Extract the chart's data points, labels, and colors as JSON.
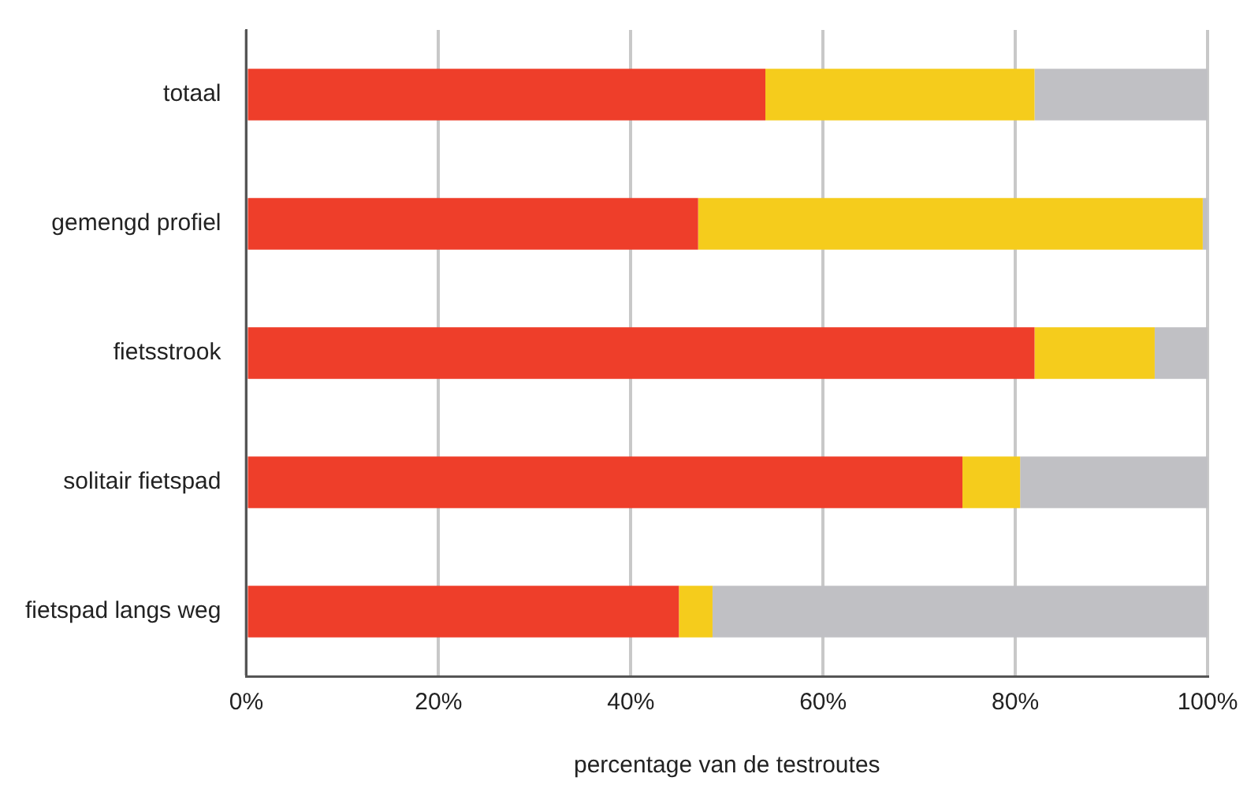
{
  "chart_data": {
    "type": "bar",
    "orientation": "horizontal",
    "stacked": true,
    "categories": [
      "totaal",
      "gemengd profiel",
      "fietsstrook",
      "solitair fietspad",
      "fietspad langs weg"
    ],
    "series": [
      {
        "color": "#ee3e2a",
        "values": [
          54,
          47,
          82,
          74.5,
          45
        ]
      },
      {
        "color": "#f5cc1c",
        "values": [
          28,
          52.5,
          12.5,
          6,
          3.5
        ]
      },
      {
        "color": "#c0c0c4",
        "values": [
          18,
          0.5,
          5.5,
          19.5,
          51.5
        ]
      }
    ],
    "xlim": [
      0,
      100
    ],
    "xticks": [
      {
        "value": 0,
        "label": "0%"
      },
      {
        "value": 20,
        "label": "20%"
      },
      {
        "value": 40,
        "label": "40%"
      },
      {
        "value": 60,
        "label": "60%"
      },
      {
        "value": 80,
        "label": "80%"
      },
      {
        "value": 100,
        "label": "100%"
      }
    ],
    "xlabel": "percentage van de testroutes",
    "grid": "x",
    "legend": false
  }
}
